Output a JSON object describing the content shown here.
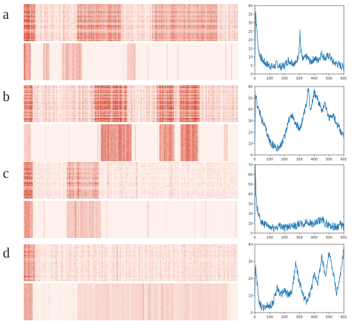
{
  "figure": {
    "panels": [
      {
        "label": "a"
      },
      {
        "label": "b"
      },
      {
        "label": "c"
      },
      {
        "label": "d"
      }
    ]
  },
  "colors": {
    "heat_high": "#d6412a",
    "heat_low": "#fff1eb",
    "line": "#1f77b4"
  },
  "chart_data": [
    {
      "type": "line",
      "panel": "a",
      "xlim": [
        0,
        600
      ],
      "ylim": [
        0,
        40
      ],
      "xticks": [
        0,
        100,
        200,
        300,
        400,
        500,
        600
      ],
      "yticks": [
        0,
        5,
        10,
        15,
        20,
        25,
        30,
        35,
        40
      ],
      "x": [
        0,
        5,
        10,
        20,
        30,
        50,
        75,
        100,
        125,
        150,
        175,
        200,
        225,
        250,
        275,
        290,
        300,
        305,
        310,
        320,
        350,
        375,
        400,
        425,
        450,
        475,
        500,
        525,
        550,
        575,
        600
      ],
      "y": [
        5,
        38,
        30,
        18,
        12,
        8,
        6,
        5,
        4,
        6,
        4,
        5,
        8,
        7,
        6,
        10,
        16,
        24,
        14,
        8,
        10,
        7,
        9,
        8,
        12,
        9,
        11,
        7,
        6,
        5,
        4
      ]
    },
    {
      "type": "line",
      "panel": "b",
      "xlim": [
        0,
        600
      ],
      "ylim": [
        0,
        60
      ],
      "xticks": [
        0,
        100,
        200,
        300,
        400,
        500,
        600
      ],
      "yticks": [
        0,
        10,
        20,
        30,
        40,
        50,
        60
      ],
      "x": [
        0,
        5,
        15,
        30,
        50,
        75,
        100,
        125,
        150,
        175,
        200,
        225,
        250,
        275,
        300,
        325,
        350,
        360,
        375,
        400,
        425,
        450,
        475,
        500,
        525,
        550,
        575,
        600
      ],
      "y": [
        10,
        55,
        45,
        38,
        30,
        22,
        12,
        8,
        6,
        8,
        15,
        30,
        35,
        28,
        22,
        32,
        45,
        58,
        40,
        55,
        48,
        40,
        45,
        32,
        36,
        28,
        22,
        15
      ]
    },
    {
      "type": "line",
      "panel": "c",
      "xlim": [
        0,
        600
      ],
      "ylim": [
        0,
        70
      ],
      "xticks": [
        0,
        100,
        200,
        300,
        400,
        500,
        600
      ],
      "yticks": [
        0,
        10,
        20,
        30,
        40,
        50,
        60,
        70
      ],
      "x": [
        0,
        3,
        8,
        15,
        25,
        40,
        60,
        80,
        100,
        125,
        150,
        175,
        200,
        225,
        250,
        275,
        300,
        325,
        350,
        375,
        400,
        425,
        450,
        475,
        500,
        525,
        550,
        575,
        600
      ],
      "y": [
        8,
        70,
        40,
        25,
        18,
        12,
        10,
        8,
        6,
        5,
        6,
        8,
        5,
        7,
        9,
        7,
        10,
        8,
        12,
        10,
        9,
        11,
        14,
        10,
        8,
        7,
        6,
        9,
        6
      ]
    },
    {
      "type": "line",
      "panel": "d",
      "xlim": [
        0,
        600
      ],
      "ylim": [
        0,
        40
      ],
      "xticks": [
        0,
        100,
        200,
        300,
        400,
        500,
        600
      ],
      "yticks": [
        0,
        10,
        20,
        30,
        40
      ],
      "x": [
        0,
        5,
        15,
        25,
        40,
        60,
        80,
        100,
        125,
        150,
        175,
        200,
        225,
        250,
        275,
        300,
        325,
        350,
        375,
        400,
        425,
        450,
        475,
        500,
        525,
        550,
        575,
        600
      ],
      "y": [
        10,
        28,
        18,
        8,
        4,
        3,
        5,
        4,
        6,
        15,
        10,
        13,
        10,
        12,
        28,
        18,
        10,
        6,
        12,
        22,
        18,
        32,
        22,
        35,
        25,
        12,
        20,
        38
      ]
    }
  ]
}
